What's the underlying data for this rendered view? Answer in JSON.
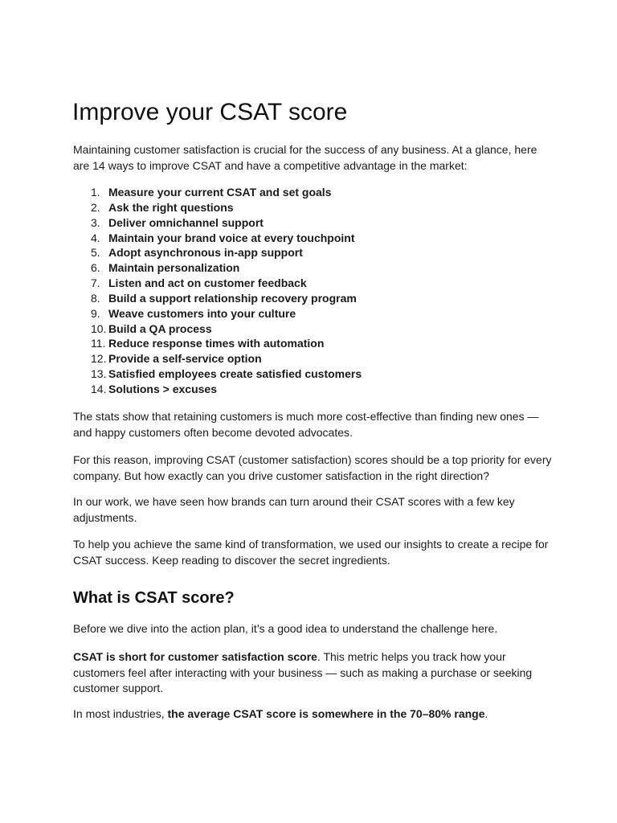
{
  "title": "Improve your CSAT score",
  "intro": "Maintaining customer satisfaction is crucial for the success of any business. At a glance, here are 14 ways to improve CSAT and have a competitive advantage in the market:",
  "ways": [
    {
      "num": "1.",
      "text": "Measure your current CSAT and set goals"
    },
    {
      "num": "2.",
      "text": "Ask the right questions"
    },
    {
      "num": "3.",
      "text": "Deliver omnichannel support"
    },
    {
      "num": "4.",
      "text": "Maintain your brand voice at every touchpoint"
    },
    {
      "num": "5.",
      "text": "Adopt asynchronous in-app support"
    },
    {
      "num": "6.",
      "text": "Maintain personalization"
    },
    {
      "num": "7.",
      "text": "Listen and act on customer feedback"
    },
    {
      "num": "8.",
      "text": "Build a support relationship recovery program"
    },
    {
      "num": "9.",
      "text": "Weave customers into your culture"
    },
    {
      "num": "10.",
      "text": "Build a QA process"
    },
    {
      "num": "11.",
      "text": "Reduce response times with automation"
    },
    {
      "num": "12.",
      "text": "Provide a self-service option"
    },
    {
      "num": "13.",
      "text": "Satisfied employees create satisfied customers"
    },
    {
      "num": "14.",
      "text": "Solutions > excuses"
    }
  ],
  "paragraphs": [
    "The stats show that retaining customers is much more cost-effective than finding new ones — and happy customers often become devoted advocates.",
    "For this reason, improving CSAT (customer satisfaction) scores should be a top priority for every company. But how exactly can you drive customer satisfaction in the right direction?",
    "In our work, we have seen how brands can turn around their CSAT scores with a few key adjustments.",
    "To help you achieve the same kind of transformation, we used our insights to create a recipe for CSAT success. Keep reading to discover the secret ingredients."
  ],
  "section": {
    "heading": "What is CSAT score?",
    "p1": "Before we dive into the action plan, it’s a good idea to understand the challenge here.",
    "p2_bold": "CSAT is short for customer satisfaction score",
    "p2_rest": ". This metric helps you track how your customers feel after interacting with your business — such as making a purchase or seeking customer support.",
    "p3_start": "In most industries, ",
    "p3_bold": "the average CSAT score is somewhere in the 70–80% range",
    "p3_end": "."
  }
}
